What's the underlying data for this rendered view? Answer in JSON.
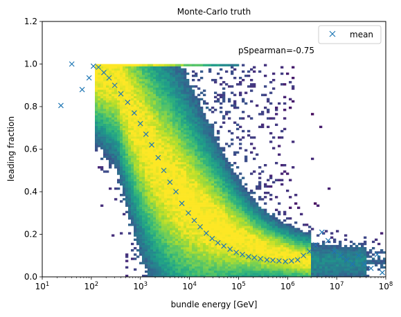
{
  "chart_data": {
    "type": "heatmap",
    "title": "Monte-Carlo truth",
    "xlabel": "bundle energy [GeV]",
    "ylabel": "leading fraction",
    "xscale": "log",
    "xlim": [
      10,
      100000000
    ],
    "ylim": [
      0,
      1.2
    ],
    "x_ticks": [
      {
        "value": 10,
        "base": "10",
        "exp": "1"
      },
      {
        "value": 100,
        "base": "10",
        "exp": "2"
      },
      {
        "value": 1000,
        "base": "10",
        "exp": "3"
      },
      {
        "value": 10000,
        "base": "10",
        "exp": "4"
      },
      {
        "value": 100000,
        "base": "10",
        "exp": "5"
      },
      {
        "value": 1000000,
        "base": "10",
        "exp": "6"
      },
      {
        "value": 10000000,
        "base": "10",
        "exp": "7"
      },
      {
        "value": 100000000,
        "base": "10",
        "exp": "8"
      }
    ],
    "y_ticks": [
      "0.0",
      "0.2",
      "0.4",
      "0.6",
      "0.8",
      "1.0",
      "1.2"
    ],
    "annotation": "pSpearman=-0.75",
    "legend": {
      "placement": "top-right",
      "entries": [
        {
          "label": "mean",
          "marker": "x"
        }
      ]
    },
    "colormap": "viridis",
    "colors": {
      "mean_marker": "#1f77b4"
    },
    "series": [
      {
        "type": "scatter",
        "marker": "x",
        "x": [
          24,
          40,
          65,
          90,
          110,
          140,
          180,
          230,
          300,
          400,
          550,
          750,
          1000,
          1300,
          1700,
          2300,
          3000,
          4000,
          5300,
          7000,
          9500,
          12500,
          16500,
          22000,
          29000,
          38000,
          50000,
          67000,
          90000,
          120000,
          160000,
          210000,
          280000,
          380000,
          500000,
          670000,
          900000,
          1200000,
          1600000,
          2100000,
          2800000,
          3700000,
          5000000,
          6700000,
          9000000,
          12000000,
          16000000,
          21000000,
          28000000,
          37000000,
          50000000,
          67000000,
          85000000
        ],
        "y": [
          0.805,
          1.0,
          0.88,
          0.935,
          0.99,
          0.985,
          0.96,
          0.935,
          0.9,
          0.86,
          0.82,
          0.77,
          0.72,
          0.67,
          0.62,
          0.56,
          0.5,
          0.445,
          0.4,
          0.345,
          0.3,
          0.265,
          0.235,
          0.205,
          0.18,
          0.16,
          0.145,
          0.13,
          0.115,
          0.105,
          0.095,
          0.09,
          0.085,
          0.08,
          0.078,
          0.075,
          0.072,
          0.075,
          0.08,
          0.1,
          0.12,
          0.15,
          0.21,
          0.17,
          0.12,
          0.1,
          0.08,
          0.06,
          0.1,
          0.06,
          0.04,
          0.105,
          0.02
        ]
      }
    ]
  }
}
